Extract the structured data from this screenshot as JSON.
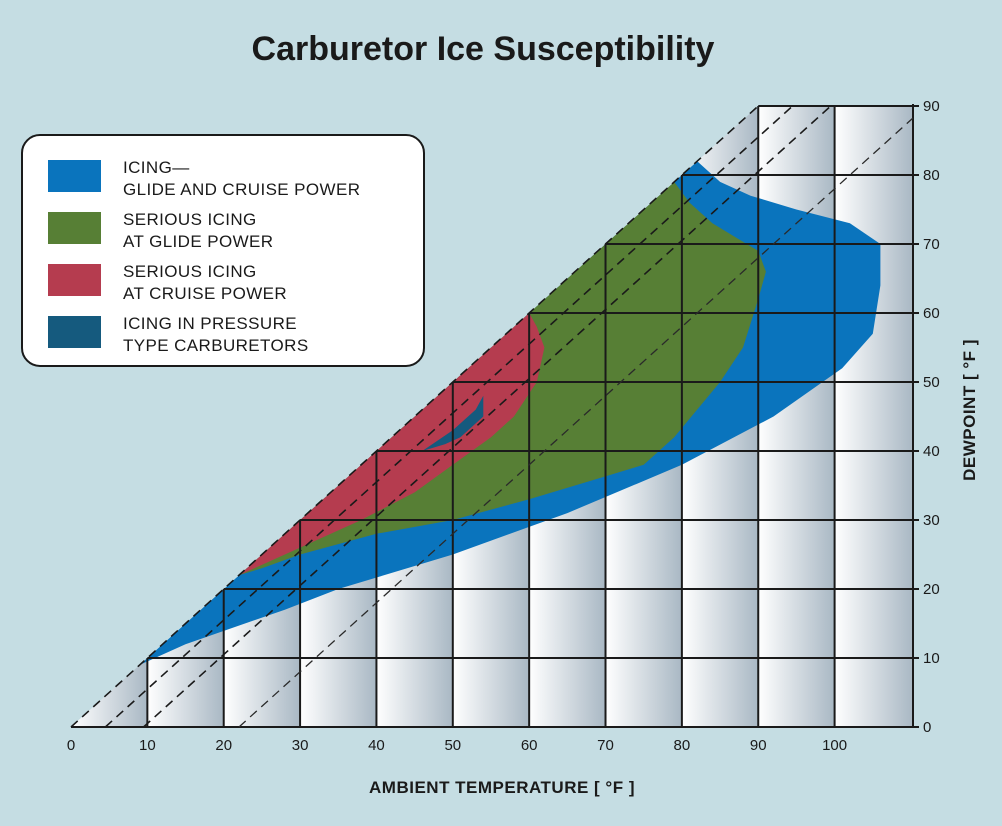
{
  "chart_data": {
    "type": "area",
    "title": "Carburetor Ice Susceptibility",
    "xlabel": "AMBIENT TEMPERATURE [ °F ]",
    "ylabel": "DEWPOINT [ °F ]",
    "xlim": [
      0,
      110
    ],
    "ylim": [
      0,
      90
    ],
    "x_ticks": [
      0,
      10,
      20,
      30,
      40,
      50,
      60,
      70,
      80,
      90,
      100
    ],
    "y_ticks": [
      0,
      10,
      20,
      30,
      40,
      50,
      60,
      70,
      80,
      90
    ],
    "grid": true,
    "legend_position": "top-left",
    "colors": {
      "background": "#c5dde3",
      "plot_gradient_light": "#ffffff",
      "plot_gradient_dark": "#a9b8c4",
      "icing": "#0a74bd",
      "serious_glide": "#577f35",
      "serious_cruise": "#b53c4f",
      "pressure_type": "#155a7e"
    },
    "legend": [
      {
        "key": "icing",
        "lines": [
          "ICING—",
          "GLIDE AND CRUISE POWER"
        ]
      },
      {
        "key": "serious_glide",
        "lines": [
          "SERIOUS ICING",
          "AT GLIDE POWER"
        ]
      },
      {
        "key": "serious_cruise",
        "lines": [
          "SERIOUS ICING",
          "AT CRUISE POWER"
        ]
      },
      {
        "key": "pressure_type",
        "lines": [
          "ICING IN PRESSURE",
          "TYPE CARBURETORS"
        ]
      }
    ],
    "series": [
      {
        "key": "icing",
        "region": [
          [
            9,
            9
          ],
          [
            20,
            20
          ],
          [
            40,
            40
          ],
          [
            60,
            60
          ],
          [
            80,
            80
          ],
          [
            82,
            82
          ],
          [
            85,
            79
          ],
          [
            89,
            77
          ],
          [
            95,
            75
          ],
          [
            102,
            73
          ],
          [
            106,
            70
          ],
          [
            106,
            64
          ],
          [
            105,
            57
          ],
          [
            101,
            52
          ],
          [
            92,
            45
          ],
          [
            80,
            38
          ],
          [
            65,
            31
          ],
          [
            50,
            25
          ],
          [
            35,
            20
          ],
          [
            28,
            17
          ],
          [
            15,
            12
          ],
          [
            9,
            9
          ]
        ]
      },
      {
        "key": "serious_glide",
        "region": [
          [
            22,
            22
          ],
          [
            30,
            30
          ],
          [
            40,
            40
          ],
          [
            50,
            50
          ],
          [
            60,
            60
          ],
          [
            70,
            70
          ],
          [
            79,
            79
          ],
          [
            81,
            76
          ],
          [
            84,
            73
          ],
          [
            87,
            71
          ],
          [
            90,
            69
          ],
          [
            91,
            66
          ],
          [
            90,
            62
          ],
          [
            88,
            55
          ],
          [
            85,
            50
          ],
          [
            79,
            42
          ],
          [
            75,
            38
          ],
          [
            69,
            36
          ],
          [
            60,
            33
          ],
          [
            50,
            30
          ],
          [
            40,
            28
          ],
          [
            30,
            25
          ],
          [
            25,
            23
          ],
          [
            22,
            22
          ]
        ]
      },
      {
        "key": "serious_cruise",
        "region": [
          [
            22,
            22
          ],
          [
            30,
            30
          ],
          [
            40,
            40
          ],
          [
            50,
            50
          ],
          [
            60,
            60
          ],
          [
            61,
            58
          ],
          [
            62,
            55
          ],
          [
            61,
            50
          ],
          [
            58,
            45
          ],
          [
            55,
            42
          ],
          [
            50,
            38
          ],
          [
            45,
            34
          ],
          [
            38,
            30
          ],
          [
            30,
            26
          ],
          [
            22,
            22
          ]
        ]
      },
      {
        "key": "pressure_type",
        "region": [
          [
            46,
            40
          ],
          [
            50,
            43
          ],
          [
            53,
            46
          ],
          [
            54,
            48
          ],
          [
            54,
            45
          ],
          [
            51,
            42
          ],
          [
            49,
            41
          ],
          [
            46,
            40
          ]
        ]
      }
    ]
  }
}
